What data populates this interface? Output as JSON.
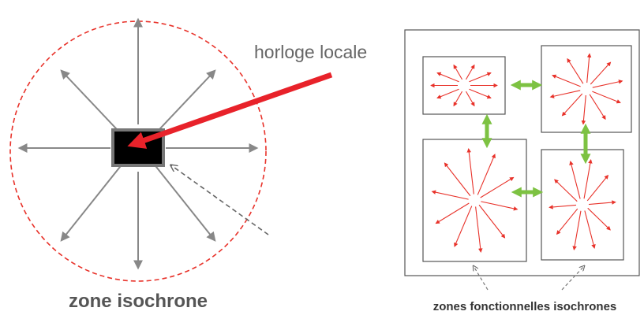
{
  "labels": {
    "clock": "horloge locale",
    "zone": "zone isochrone",
    "zones": "zones fonctionnelles isochrones"
  }
}
